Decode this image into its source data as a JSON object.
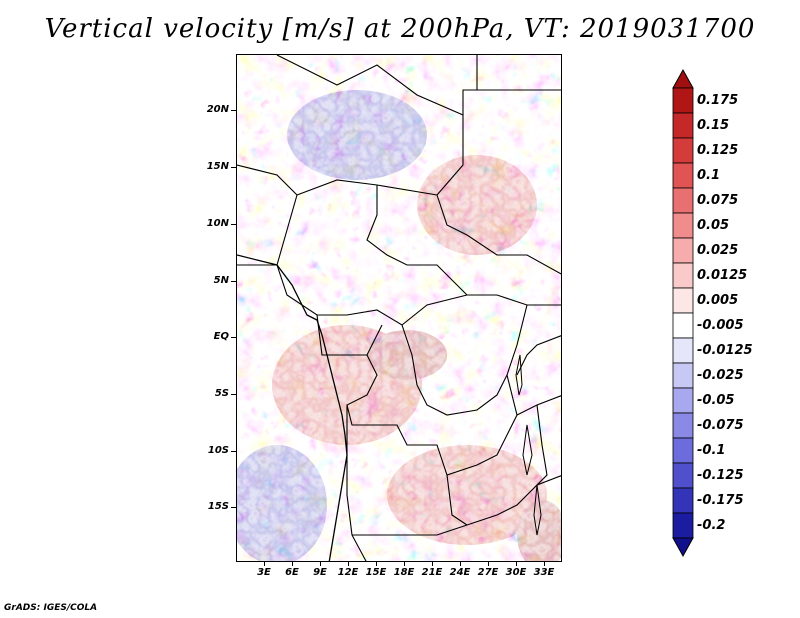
{
  "title": "Vertical velocity [m/s] at 200hPa, VT: 2019031700",
  "footer": "GrADS: IGES/COLA",
  "map": {
    "region": "Central Africa",
    "variable": "Vertical velocity",
    "units": "m/s",
    "level": "200hPa",
    "valid_time": "2019031700",
    "lon_range": [
      0,
      35
    ],
    "lat_range": [
      -20,
      25
    ],
    "y_axis_labels": [
      "20N",
      "15N",
      "10N",
      "5N",
      "EQ",
      "5S",
      "10S",
      "15S"
    ],
    "x_axis_labels": [
      "3E",
      "6E",
      "9E",
      "12E",
      "15E",
      "18E",
      "21E",
      "24E",
      "27E",
      "30E",
      "33E"
    ]
  },
  "colorbar": {
    "levels": [
      {
        "label": "0.175",
        "color": "#b01616"
      },
      {
        "label": "0.15",
        "color": "#c42828"
      },
      {
        "label": "0.125",
        "color": "#d43c3c"
      },
      {
        "label": "0.1",
        "color": "#e05454"
      },
      {
        "label": "0.075",
        "color": "#e87070"
      },
      {
        "label": "0.05",
        "color": "#f08c8c"
      },
      {
        "label": "0.025",
        "color": "#f6acac"
      },
      {
        "label": "0.0125",
        "color": "#facaca"
      },
      {
        "label": "0.005",
        "color": "#fde6e6"
      },
      {
        "label": "-0.005",
        "color": "#ffffff"
      },
      {
        "label": "-0.0125",
        "color": "#e6e6fb"
      },
      {
        "label": "-0.025",
        "color": "#c8c8f5"
      },
      {
        "label": "-0.05",
        "color": "#a8a8ee"
      },
      {
        "label": "-0.075",
        "color": "#8a8ae6"
      },
      {
        "label": "-0.1",
        "color": "#6c6cdc"
      },
      {
        "label": "-0.125",
        "color": "#5050cc"
      },
      {
        "label": "-0.175",
        "color": "#3434b8"
      },
      {
        "label": "-0.2",
        "color": "#1c1ca0"
      }
    ],
    "top_color": "#a01010",
    "bottom_color": "#10108c"
  }
}
